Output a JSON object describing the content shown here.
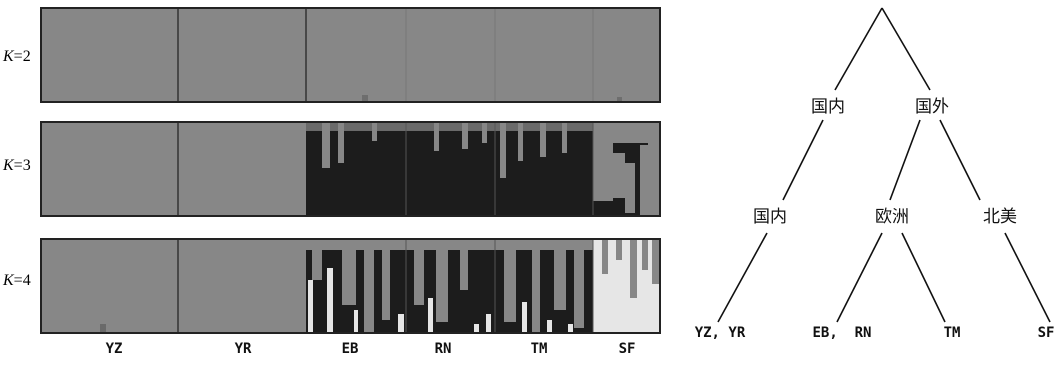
{
  "structure_plot": {
    "panels": [
      {
        "label_prefix": "K",
        "label_value": "=2"
      },
      {
        "label_prefix": "K",
        "label_value": "=3"
      },
      {
        "label_prefix": "K",
        "label_value": "=4"
      }
    ],
    "populations": [
      "YZ",
      "YR",
      "EB",
      "RN",
      "TM",
      "SF"
    ],
    "colors": {
      "cluster_gray": "#878787",
      "cluster_dark": "#1c1c1c",
      "cluster_light": "#e6e6e6",
      "border": "#222222"
    }
  },
  "tree": {
    "level1": {
      "left": "国内",
      "right": "国外"
    },
    "level2": {
      "domestic": "国内",
      "europe": "欧洲",
      "north_america": "北美"
    },
    "leaves": {
      "domestic": "YZ, YR",
      "europe_a": "EB,  RN",
      "europe_b": "TM",
      "north_america": "SF"
    }
  }
}
